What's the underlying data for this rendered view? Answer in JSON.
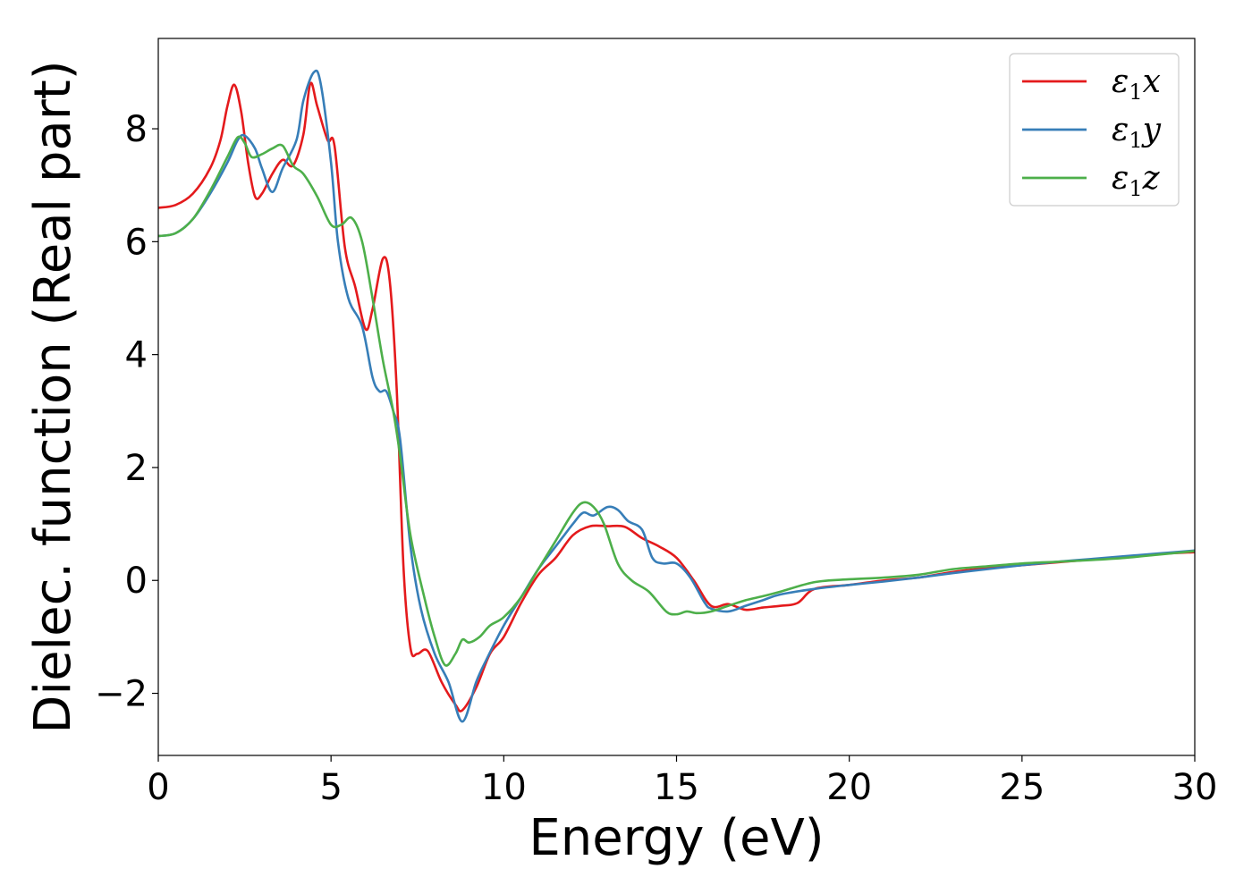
{
  "chart_data": {
    "type": "line",
    "title": "",
    "xlabel": "Energy (eV)",
    "ylabel": "Dielec. function (Real part)",
    "xlim": [
      0,
      30
    ],
    "ylim": [
      -3.1,
      9.6
    ],
    "xticks": [
      0,
      5,
      10,
      15,
      20,
      25,
      30
    ],
    "xtick_labels": [
      "0",
      "5",
      "10",
      "15",
      "20",
      "25",
      "30"
    ],
    "yticks": [
      -2,
      0,
      2,
      4,
      6,
      8
    ],
    "ytick_labels": [
      "−2",
      "0",
      "2",
      "4",
      "6",
      "8"
    ],
    "grid": false,
    "legend_position": "top-right",
    "series": [
      {
        "name": "ε₁x",
        "name_main": "ε",
        "name_sub": "1",
        "name_tail": "x",
        "color": "#e41a1c",
        "x": [
          0,
          0.5,
          1.0,
          1.5,
          1.8,
          2.0,
          2.2,
          2.4,
          2.6,
          2.8,
          3.0,
          3.3,
          3.6,
          3.9,
          4.2,
          4.4,
          4.6,
          4.9,
          5.1,
          5.4,
          5.7,
          6.0,
          6.2,
          6.5,
          6.7,
          6.9,
          7.1,
          7.3,
          7.5,
          7.8,
          8.2,
          8.6,
          8.8,
          9.2,
          9.6,
          10.0,
          10.5,
          11.0,
          11.5,
          12.0,
          12.5,
          13.0,
          13.5,
          14.0,
          14.5,
          15.0,
          15.5,
          16.0,
          16.5,
          17.0,
          17.5,
          18.0,
          18.5,
          19.0,
          20.0,
          21.0,
          22.0,
          23.0,
          24.0,
          25.0,
          26.0,
          27.0,
          28.0,
          29.0,
          30.0
        ],
        "y": [
          6.6,
          6.65,
          6.85,
          7.3,
          7.8,
          8.4,
          8.78,
          8.3,
          7.4,
          6.8,
          6.85,
          7.2,
          7.45,
          7.35,
          7.9,
          8.8,
          8.4,
          7.8,
          7.7,
          5.9,
          5.2,
          4.45,
          4.8,
          5.7,
          5.3,
          3.4,
          0.2,
          -1.2,
          -1.3,
          -1.25,
          -1.8,
          -2.2,
          -2.3,
          -1.9,
          -1.3,
          -1.0,
          -0.4,
          0.1,
          0.4,
          0.8,
          0.96,
          0.96,
          0.95,
          0.75,
          0.6,
          0.4,
          0.0,
          -0.45,
          -0.42,
          -0.52,
          -0.48,
          -0.45,
          -0.4,
          -0.15,
          -0.08,
          0.0,
          0.05,
          0.15,
          0.22,
          0.27,
          0.32,
          0.37,
          0.42,
          0.47,
          0.5
        ]
      },
      {
        "name": "ε₁y",
        "name_main": "ε",
        "name_sub": "1",
        "name_tail": "y",
        "color": "#377eb8",
        "x": [
          0,
          0.5,
          1.0,
          1.5,
          2.0,
          2.3,
          2.5,
          2.8,
          3.0,
          3.3,
          3.6,
          4.0,
          4.2,
          4.5,
          4.7,
          5.0,
          5.2,
          5.5,
          5.9,
          6.2,
          6.4,
          6.6,
          6.8,
          7.0,
          7.3,
          7.6,
          8.0,
          8.4,
          8.8,
          9.2,
          9.5,
          10.0,
          10.5,
          11.0,
          11.5,
          12.0,
          12.3,
          12.6,
          13.0,
          13.3,
          13.6,
          14.0,
          14.3,
          14.6,
          15.0,
          15.4,
          15.8,
          16.0,
          16.5,
          17.0,
          17.5,
          18.0,
          19.0,
          20.0,
          21.0,
          22.0,
          23.0,
          24.0,
          25.0,
          26.0,
          27.0,
          28.0,
          29.0,
          30.0
        ],
        "y": [
          6.1,
          6.15,
          6.4,
          6.85,
          7.4,
          7.8,
          7.88,
          7.65,
          7.3,
          6.88,
          7.3,
          7.8,
          8.5,
          9.0,
          8.8,
          7.4,
          6.0,
          5.0,
          4.5,
          3.6,
          3.35,
          3.35,
          3.0,
          2.5,
          0.6,
          -0.5,
          -1.3,
          -1.8,
          -2.5,
          -1.8,
          -1.4,
          -0.8,
          -0.3,
          0.2,
          0.6,
          1.0,
          1.2,
          1.15,
          1.3,
          1.25,
          1.05,
          0.9,
          0.4,
          0.3,
          0.3,
          0.05,
          -0.38,
          -0.5,
          -0.55,
          -0.45,
          -0.35,
          -0.25,
          -0.15,
          -0.08,
          -0.02,
          0.05,
          0.13,
          0.2,
          0.27,
          0.33,
          0.38,
          0.43,
          0.48,
          0.53
        ]
      },
      {
        "name": "ε₁z",
        "name_main": "ε",
        "name_sub": "1",
        "name_tail": "z",
        "color": "#4daf4a",
        "x": [
          0,
          0.5,
          1.0,
          1.5,
          2.0,
          2.3,
          2.5,
          2.7,
          3.0,
          3.3,
          3.6,
          3.9,
          4.2,
          4.6,
          5.0,
          5.3,
          5.6,
          5.9,
          6.2,
          6.5,
          6.8,
          7.0,
          7.3,
          7.7,
          8.0,
          8.3,
          8.6,
          8.8,
          9.0,
          9.3,
          9.6,
          10.0,
          10.5,
          11.0,
          11.5,
          12.0,
          12.3,
          12.6,
          12.9,
          13.3,
          13.7,
          14.2,
          14.7,
          15.0,
          15.3,
          15.6,
          16.0,
          16.5,
          17.0,
          17.5,
          18.0,
          19.0,
          20.0,
          21.0,
          22.0,
          23.0,
          24.0,
          25.0,
          26.0,
          27.0,
          28.0,
          29.0,
          30.0
        ],
        "y": [
          6.1,
          6.15,
          6.4,
          6.9,
          7.5,
          7.85,
          7.75,
          7.5,
          7.55,
          7.65,
          7.7,
          7.35,
          7.2,
          6.8,
          6.3,
          6.3,
          6.42,
          6.0,
          5.0,
          3.9,
          3.0,
          2.2,
          0.8,
          -0.3,
          -1.0,
          -1.5,
          -1.3,
          -1.05,
          -1.1,
          -1.0,
          -0.8,
          -0.65,
          -0.3,
          0.2,
          0.7,
          1.2,
          1.38,
          1.3,
          1.0,
          0.3,
          0.0,
          -0.2,
          -0.55,
          -0.6,
          -0.55,
          -0.58,
          -0.55,
          -0.45,
          -0.35,
          -0.28,
          -0.2,
          -0.03,
          0.02,
          0.05,
          0.1,
          0.2,
          0.25,
          0.3,
          0.33,
          0.36,
          0.4,
          0.46,
          0.52
        ]
      }
    ]
  }
}
